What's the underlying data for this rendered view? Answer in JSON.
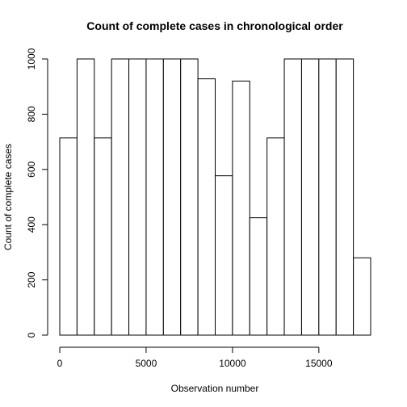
{
  "chart_data": {
    "type": "bar",
    "title": "Count of complete cases in chronological order",
    "xlabel": "Observation number",
    "ylabel": "Count of complete cases",
    "xlim": [
      0,
      18000
    ],
    "ylim": [
      0,
      1000
    ],
    "x_ticks": [
      0,
      5000,
      10000,
      15000
    ],
    "x_tick_labels": [
      "0",
      "5000",
      "10000",
      "15000"
    ],
    "y_ticks": [
      0,
      200,
      400,
      600,
      800,
      1000
    ],
    "y_tick_labels": [
      "0",
      "200",
      "400",
      "600",
      "800",
      "1000"
    ],
    "bin_width": 1000,
    "bins": [
      {
        "start": 0,
        "end": 1000,
        "value": 714
      },
      {
        "start": 1000,
        "end": 2000,
        "value": 1000
      },
      {
        "start": 2000,
        "end": 3000,
        "value": 714
      },
      {
        "start": 3000,
        "end": 4000,
        "value": 1000
      },
      {
        "start": 4000,
        "end": 5000,
        "value": 1000
      },
      {
        "start": 5000,
        "end": 6000,
        "value": 1000
      },
      {
        "start": 6000,
        "end": 7000,
        "value": 1000
      },
      {
        "start": 7000,
        "end": 8000,
        "value": 1000
      },
      {
        "start": 8000,
        "end": 9000,
        "value": 928
      },
      {
        "start": 9000,
        "end": 10000,
        "value": 577
      },
      {
        "start": 10000,
        "end": 11000,
        "value": 920
      },
      {
        "start": 11000,
        "end": 12000,
        "value": 425
      },
      {
        "start": 12000,
        "end": 13000,
        "value": 714
      },
      {
        "start": 13000,
        "end": 14000,
        "value": 1000
      },
      {
        "start": 14000,
        "end": 15000,
        "value": 1000
      },
      {
        "start": 15000,
        "end": 16000,
        "value": 1000
      },
      {
        "start": 16000,
        "end": 17000,
        "value": 1000
      },
      {
        "start": 17000,
        "end": 18000,
        "value": 280
      }
    ],
    "grid": false
  }
}
